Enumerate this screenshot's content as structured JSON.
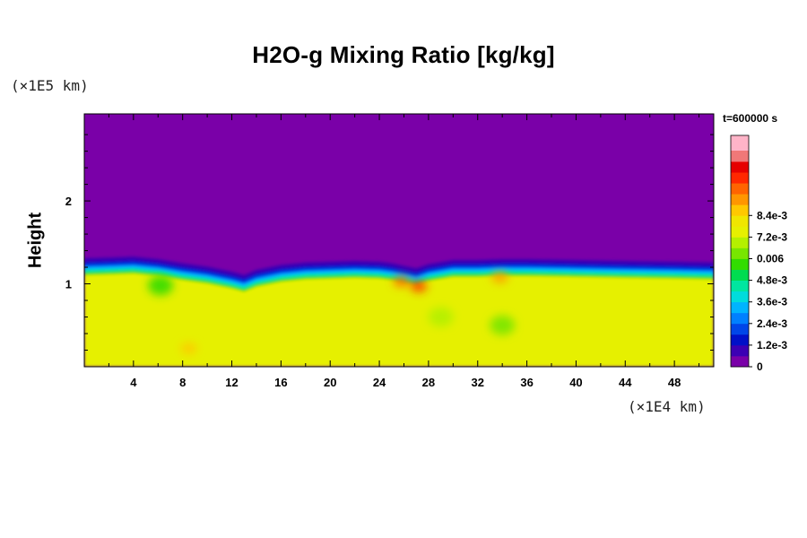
{
  "chart_data": {
    "type": "heatmap",
    "title": "H2O-g Mixing Ratio [kg/kg]",
    "ylabel": "Height",
    "y_unit": "(×1E5 km)",
    "x_unit": "(×1E4 km)",
    "timestamp": "t=600000 s",
    "xlim": [
      0,
      51.2
    ],
    "ylim": [
      0,
      3.05
    ],
    "x_ticks": [
      "4",
      "8",
      "12",
      "16",
      "20",
      "24",
      "28",
      "32",
      "36",
      "40",
      "44",
      "48"
    ],
    "y_ticks": [
      "1",
      "2"
    ],
    "colorbar": {
      "min": 0,
      "max": 0.0096,
      "labels": [
        "0",
        "1.2e-3",
        "2.4e-3",
        "3.6e-3",
        "4.8e-3",
        "0.006",
        "7.2e-3",
        "8.4e-3"
      ],
      "colors": [
        "#7a00a8",
        "#3c00b4",
        "#0010c8",
        "#0046e8",
        "#0080ff",
        "#00b4ff",
        "#00dcdc",
        "#00e6a0",
        "#00dc50",
        "#32dc00",
        "#78e600",
        "#b4f000",
        "#e6f000",
        "#f0e600",
        "#ffc800",
        "#ff9600",
        "#ff6400",
        "#ff2800",
        "#e60000",
        "#f07878"
      ],
      "cap_color": "#ffb4c8"
    },
    "background_value": 0.0,
    "lower_layer_value": 0.0062,
    "interface_height": [
      1.18,
      1.19,
      1.2,
      1.17,
      1.12,
      1.08,
      1.02,
      0.98,
      1.04,
      1.1,
      1.13,
      1.14,
      1.15,
      1.14,
      1.12,
      1.09,
      1.06,
      1.11,
      1.16,
      1.16,
      1.17,
      1.17,
      1.16,
      1.15,
      1.14,
      1.13
    ],
    "interface_x": [
      0,
      2,
      4,
      6,
      8,
      10,
      12,
      13,
      14,
      16,
      18,
      20,
      22,
      24,
      25,
      26,
      27,
      28,
      30,
      32,
      34,
      36,
      40,
      44,
      48,
      51.2
    ],
    "features": [
      {
        "x": 27.2,
        "y": 0.97,
        "value": 0.0086
      },
      {
        "x": 25.8,
        "y": 1.03,
        "value": 0.008
      },
      {
        "x": 33.8,
        "y": 1.08,
        "value": 0.0076
      },
      {
        "x": 6.2,
        "y": 0.98,
        "value": 0.0045
      },
      {
        "x": 34.0,
        "y": 0.5,
        "value": 0.005
      },
      {
        "x": 29.0,
        "y": 0.6,
        "value": 0.0055
      },
      {
        "x": 8.5,
        "y": 0.22,
        "value": 0.0068
      }
    ]
  }
}
